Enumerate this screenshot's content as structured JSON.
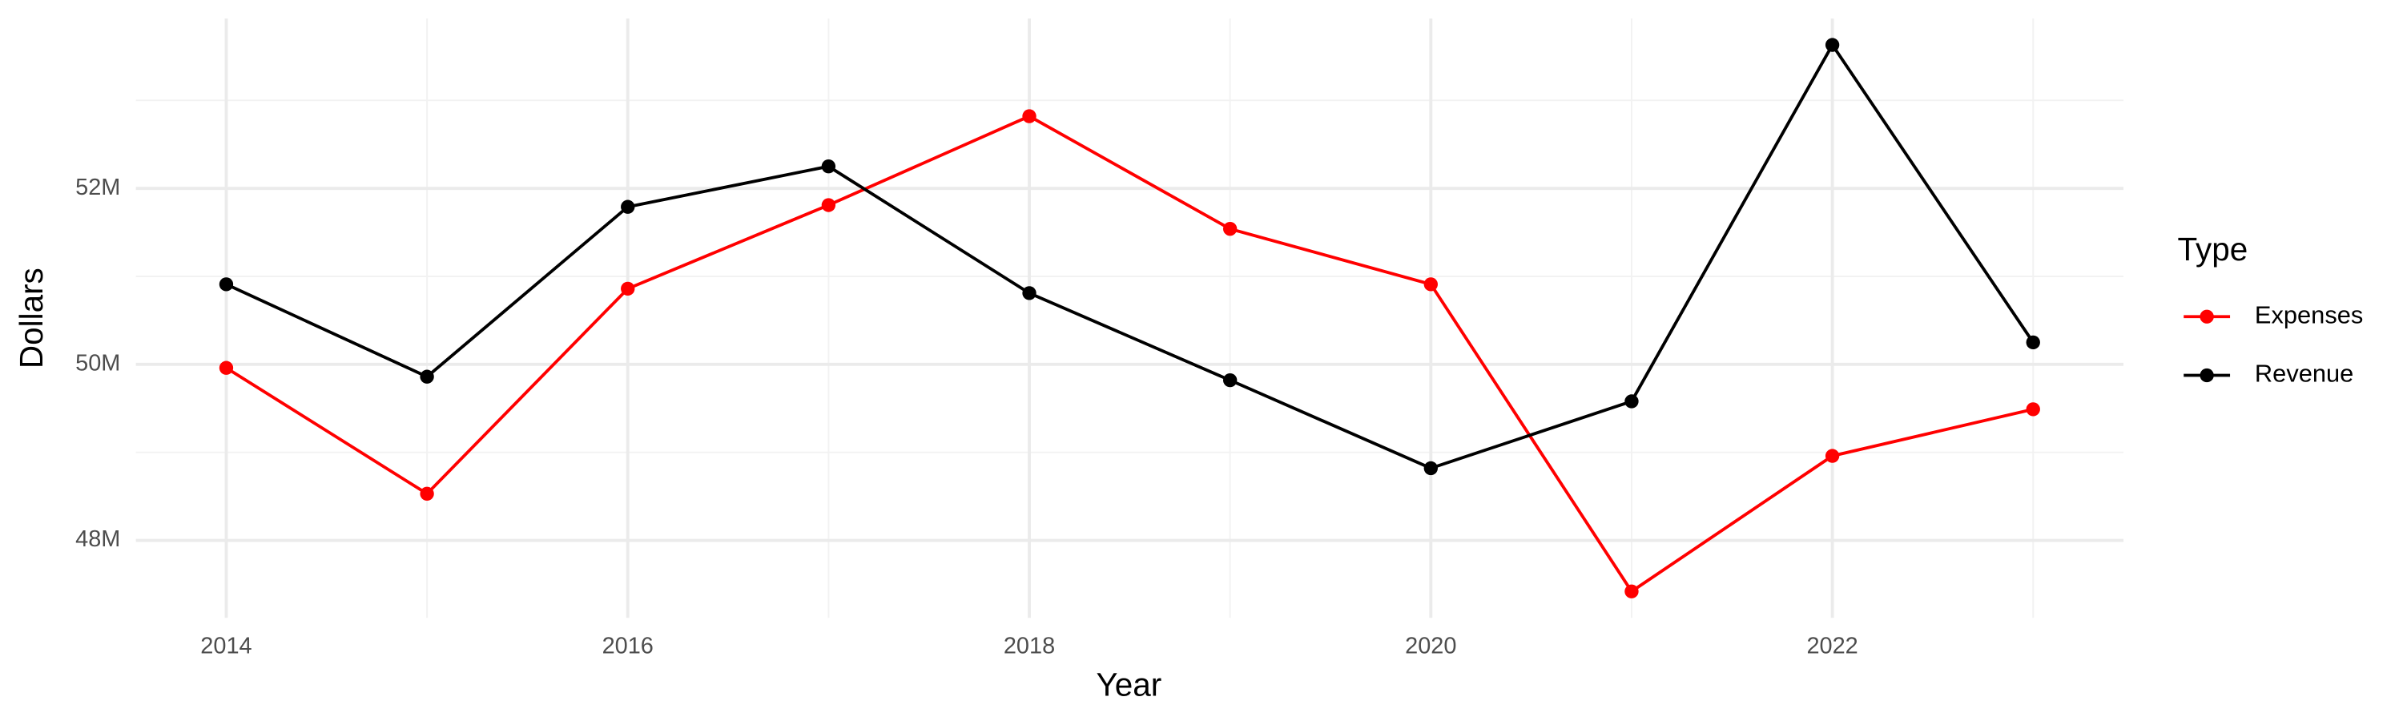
{
  "chart_data": {
    "type": "line",
    "x_label": "Year",
    "y_label": "Dollars",
    "legend_title": "Type",
    "x": [
      2014,
      2015,
      2016,
      2017,
      2018,
      2019,
      2020,
      2021,
      2022,
      2023
    ],
    "series": [
      {
        "name": "Expenses",
        "color": "#ff0000",
        "values": [
          49.96,
          48.53,
          50.86,
          51.81,
          52.82,
          51.54,
          50.91,
          47.42,
          48.96,
          49.49
        ]
      },
      {
        "name": "Revenue",
        "color": "#000000",
        "values": [
          50.91,
          49.86,
          51.79,
          52.25,
          50.81,
          49.82,
          48.82,
          49.58,
          53.63,
          50.25
        ]
      }
    ],
    "xlim": [
      2013.55,
      2023.45
    ],
    "ylim": [
      47.12,
      53.93
    ],
    "xticks": [
      2014,
      2016,
      2018,
      2020,
      2022
    ],
    "yticks": [
      {
        "value": 48,
        "label": "48M"
      },
      {
        "value": 50,
        "label": "50M"
      },
      {
        "value": 52,
        "label": "52M"
      }
    ],
    "minor_xticks": [
      2015,
      2017,
      2019,
      2021,
      2023
    ],
    "minor_yticks": [
      49,
      51,
      53
    ],
    "grid": true,
    "legend_position": "right"
  }
}
